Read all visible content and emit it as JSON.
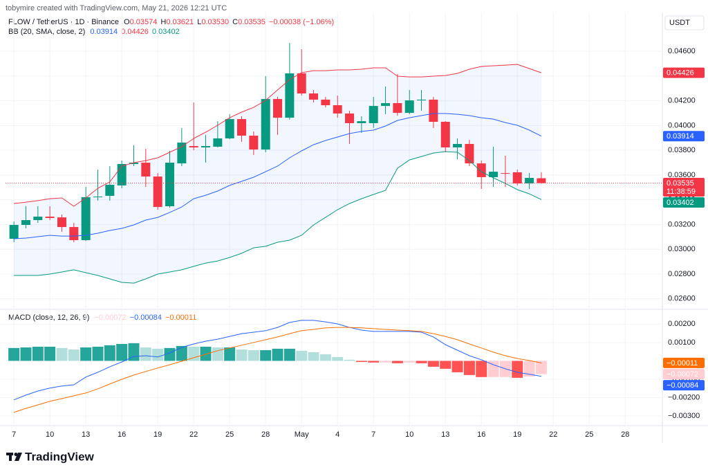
{
  "header": {
    "credit": "tobymire created with TradingView.com, May 21, 2026 12:21 UTC",
    "logo": "TradingView"
  },
  "chart_data": [
    {
      "type": "candlestick",
      "title": "FLOW / TetherUS · 1D · Binance",
      "ohlc_legend": [
        [
          "O",
          "0.03574"
        ],
        [
          "H",
          "0.03621"
        ],
        [
          "L",
          "0.03530"
        ],
        [
          "C",
          "0.03535"
        ]
      ],
      "change_label": "−0.00038 (−1.06%)",
      "currency": "USDT",
      "countdown": "11:38:59",
      "x": [
        0,
        1,
        2,
        3,
        4,
        5,
        6,
        7,
        8,
        9,
        10,
        11,
        12,
        13,
        14,
        15,
        16,
        17,
        18,
        19,
        20,
        21,
        22,
        23,
        24,
        25,
        26,
        27,
        28,
        29,
        30,
        31,
        32,
        33,
        34,
        35,
        36,
        37,
        38,
        39,
        40,
        41,
        42,
        43,
        44
      ],
      "open": [
        0.03085,
        0.03197,
        0.03236,
        0.03264,
        0.03258,
        0.0318,
        0.03074,
        0.03421,
        0.03432,
        0.03516,
        0.03689,
        0.037,
        0.03588,
        0.03348,
        0.03694,
        0.03834,
        0.03823,
        0.03829,
        0.03896,
        0.04052,
        0.03918,
        0.03806,
        0.04214,
        0.04063,
        0.04421,
        0.04259,
        0.04209,
        0.04164,
        0.04097,
        0.04019,
        0.04019,
        0.04158,
        0.04181,
        0.04102,
        0.04203,
        0.04209,
        0.0403,
        0.03823,
        0.03851,
        0.03694,
        0.03583,
        0.03616,
        0.03622,
        0.03532,
        0.03574
      ],
      "high": [
        0.03225,
        0.03348,
        0.03348,
        0.03348,
        0.03281,
        0.03214,
        0.03504,
        0.03644,
        0.03672,
        0.03717,
        0.0384,
        0.03812,
        0.03616,
        0.03795,
        0.0398,
        0.04186,
        0.03924,
        0.04035,
        0.04091,
        0.04075,
        0.03952,
        0.04399,
        0.04231,
        0.04667,
        0.04617,
        0.04287,
        0.04231,
        0.04242,
        0.04119,
        0.04075,
        0.04231,
        0.04315,
        0.04416,
        0.04287,
        0.04287,
        0.04231,
        0.04035,
        0.03896,
        0.03884,
        0.03717,
        0.03829,
        0.03756,
        0.03644,
        0.03616,
        0.03621
      ],
      "low": [
        0.03057,
        0.03169,
        0.03214,
        0.03236,
        0.03141,
        0.03057,
        0.03068,
        0.03393,
        0.03393,
        0.03493,
        0.03672,
        0.03504,
        0.0332,
        0.03337,
        0.03672,
        0.03801,
        0.037,
        0.03823,
        0.0389,
        0.03868,
        0.03762,
        0.03784,
        0.03924,
        0.04047,
        0.04242,
        0.04186,
        0.04147,
        0.04063,
        0.03851,
        0.0394,
        0.0398,
        0.04091,
        0.0408,
        0.04091,
        0.04119,
        0.0398,
        0.03784,
        0.03728,
        0.03672,
        0.03488,
        0.03504,
        0.03504,
        0.03516,
        0.03488,
        0.0353
      ],
      "close": [
        0.03197,
        0.03236,
        0.03264,
        0.03253,
        0.0318,
        0.03074,
        0.03421,
        0.03426,
        0.03521,
        0.03689,
        0.037,
        0.03588,
        0.03342,
        0.037,
        0.03862,
        0.03823,
        0.03834,
        0.03896,
        0.04052,
        0.03918,
        0.03806,
        0.04214,
        0.04063,
        0.04421,
        0.04259,
        0.04209,
        0.04164,
        0.04097,
        0.04019,
        0.04035,
        0.04158,
        0.04181,
        0.04102,
        0.04203,
        0.04209,
        0.0403,
        0.03823,
        0.03851,
        0.03694,
        0.03583,
        0.03627,
        0.03611,
        0.03532,
        0.03577,
        0.03535
      ],
      "up_color": "#089981",
      "down_color": "#f23645",
      "ylim": [
        0.02515,
        0.04902
      ],
      "yticks": [
        {
          "value": 0.026,
          "label": "0.02600"
        },
        {
          "value": 0.028,
          "label": "0.02800"
        },
        {
          "value": 0.03,
          "label": "0.03000"
        },
        {
          "value": 0.032,
          "label": "0.03200"
        },
        {
          "value": 0.034,
          "label": "0.03400"
        },
        {
          "value": 0.036,
          "label": "0.03600"
        },
        {
          "value": 0.038,
          "label": "0.03800"
        },
        {
          "value": 0.04,
          "label": "0.04000"
        },
        {
          "value": 0.042,
          "label": "0.04200"
        },
        {
          "value": 0.044,
          "label": "0.04400"
        },
        {
          "value": 0.046,
          "label": "0.04600"
        }
      ],
      "grid": true,
      "overlay": {
        "title": "BB (20, SMA, close, 2)",
        "fill": "#2962ff",
        "series": [
          {
            "color": "#2962ff",
            "values": [
              0.03085,
              0.03091,
              0.03102,
              0.03113,
              0.03107,
              0.03107,
              0.03113,
              0.0313,
              0.03152,
              0.03169,
              0.03197,
              0.03236,
              0.03258,
              0.03298,
              0.03342,
              0.03409,
              0.03437,
              0.03471,
              0.03516,
              0.03549,
              0.03583,
              0.03627,
              0.03672,
              0.03739,
              0.03795,
              0.03845,
              0.03879,
              0.03907,
              0.03935,
              0.03952,
              0.03963,
              0.03996,
              0.04041,
              0.04063,
              0.0408,
              0.04097,
              0.04097,
              0.04091,
              0.0408,
              0.04063,
              0.04052,
              0.04024,
              0.04002,
              0.03963,
              0.03914
            ]
          },
          {
            "color": "#f23645",
            "values": [
              0.0337,
              0.03381,
              0.03393,
              0.03409,
              0.03415,
              0.03348,
              0.03415,
              0.03493,
              0.03544,
              0.03672,
              0.037,
              0.03717,
              0.03739,
              0.03784,
              0.03829,
              0.03896,
              0.03946,
              0.04002,
              0.04063,
              0.04108,
              0.04147,
              0.04203,
              0.04287,
              0.04371,
              0.04427,
              0.04443,
              0.04443,
              0.04449,
              0.04449,
              0.04455,
              0.04466,
              0.04466,
              0.04399,
              0.04393,
              0.04393,
              0.04399,
              0.04404,
              0.04421,
              0.04455,
              0.04477,
              0.04483,
              0.04488,
              0.04494,
              0.0446,
              0.04426
            ]
          },
          {
            "color": "#089981",
            "values": [
              0.02789,
              0.02789,
              0.02789,
              0.028,
              0.02817,
              0.02834,
              0.02811,
              0.02789,
              0.02761,
              0.02733,
              0.02727,
              0.02761,
              0.028,
              0.02817,
              0.02834,
              0.02862,
              0.02889,
              0.02906,
              0.02934,
              0.02968,
              0.03012,
              0.03024,
              0.03057,
              0.03074,
              0.03113,
              0.03197,
              0.03258,
              0.0332,
              0.0337,
              0.03409,
              0.03443,
              0.03476,
              0.03655,
              0.03722,
              0.0375,
              0.03778,
              0.03789,
              0.03784,
              0.03717,
              0.03627,
              0.03577,
              0.03532,
              0.03482,
              0.03448,
              0.03402
            ]
          }
        ]
      }
    },
    {
      "type": "macd",
      "title": "MACD (close, 12, 26, 9)",
      "xlim": [
        -0.7,
        54.1
      ],
      "xticks": [
        {
          "value": 0,
          "label": "7"
        },
        {
          "value": 3,
          "label": "10"
        },
        {
          "value": 6,
          "label": "13"
        },
        {
          "value": 9,
          "label": "16"
        },
        {
          "value": 12,
          "label": "19"
        },
        {
          "value": 15,
          "label": "22"
        },
        {
          "value": 18,
          "label": "25"
        },
        {
          "value": 21,
          "label": "28"
        },
        {
          "value": 24,
          "label": "May"
        },
        {
          "value": 27,
          "label": "4"
        },
        {
          "value": 30,
          "label": "7"
        },
        {
          "value": 33,
          "label": "10"
        },
        {
          "value": 36,
          "label": "13"
        },
        {
          "value": 39,
          "label": "16"
        },
        {
          "value": 42,
          "label": "19"
        },
        {
          "value": 45,
          "label": "22"
        },
        {
          "value": 48,
          "label": "25"
        },
        {
          "value": 51,
          "label": "28"
        }
      ],
      "ylim": [
        -0.00352,
        0.0028
      ],
      "yticks": [
        {
          "value": 0.002,
          "label": "0.00200"
        },
        {
          "value": 0.001,
          "label": "0.00100"
        },
        {
          "value": -0.001,
          "label": "−0.00100"
        },
        {
          "value": -0.002,
          "label": "−0.00200"
        },
        {
          "value": -0.003,
          "label": "−0.00300"
        }
      ],
      "grid": true,
      "histogram": {
        "colors": [
          "#26a69a",
          "#b2dfdb",
          "#ff5252",
          "#ffcdd2"
        ],
        "last_label": "−0.00072",
        "values": [
          0.0007,
          0.00073,
          0.00077,
          0.00077,
          0.0007,
          0.00062,
          0.00073,
          0.00077,
          0.00085,
          0.00092,
          0.00096,
          0.00073,
          0.00066,
          0.0007,
          0.00081,
          0.00077,
          0.00077,
          0.00073,
          0.00073,
          0.00062,
          0.00058,
          0.00058,
          0.00066,
          0.00066,
          0.00055,
          0.00047,
          0.00036,
          0.00021,
          6e-05,
          -6e-05,
          -9e-05,
          -9e-05,
          -0.00013,
          -9e-05,
          -0.00013,
          -0.00032,
          -0.00043,
          -0.00062,
          -0.00077,
          -0.00088,
          -0.00088,
          -0.00088,
          -0.00092,
          -0.00085,
          -0.00072
        ]
      },
      "series": [
        {
          "color": "#2962ff",
          "last_label": "−0.00084",
          "values": [
            -0.00212,
            -0.00186,
            -0.00164,
            -0.00148,
            -0.00137,
            -0.0013,
            -0.00088,
            -0.00062,
            -0.00032,
            -6e-05,
            0.00024,
            0.00028,
            0.00021,
            0.00043,
            0.00073,
            0.00092,
            0.00107,
            0.00118,
            0.00133,
            0.00148,
            0.00156,
            0.00164,
            0.00182,
            0.00209,
            0.0022,
            0.0022,
            0.00212,
            0.00201,
            0.00182,
            0.00167,
            0.0016,
            0.0016,
            0.0016,
            0.0016,
            0.00156,
            0.0013,
            0.00088,
            0.00058,
            0.00028,
            6e-05,
            -0.00021,
            -0.00043,
            -0.00062,
            -0.00073,
            -0.00084
          ]
        },
        {
          "color": "#ff6d00",
          "last_label": "−0.00011",
          "values": [
            -0.0028,
            -0.00258,
            -0.00239,
            -0.0022,
            -0.00205,
            -0.0019,
            -0.00175,
            -0.00152,
            -0.00126,
            -0.001,
            -0.00077,
            -0.00058,
            -0.00039,
            -0.00021,
            -2e-05,
            0.00017,
            0.00036,
            0.00055,
            0.0007,
            0.00085,
            0.001,
            0.00115,
            0.0013,
            0.00148,
            0.00164,
            0.00171,
            0.00179,
            0.00182,
            0.00182,
            0.00179,
            0.00175,
            0.00171,
            0.00167,
            0.00164,
            0.0016,
            0.00148,
            0.00133,
            0.00115,
            0.00092,
            0.0007,
            0.00047,
            0.00028,
            0.00013,
            2e-05,
            -0.00011
          ]
        }
      ]
    }
  ]
}
